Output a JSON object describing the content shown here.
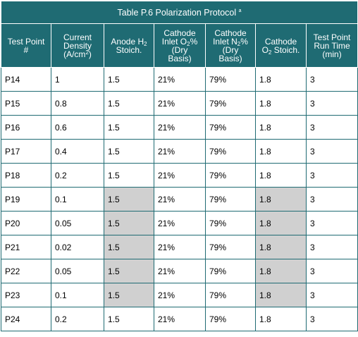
{
  "table": {
    "title": "Table P.6 Polarization Protocol",
    "title_note": "a",
    "headers": [
      {
        "lines": [
          [
            "Test Point"
          ],
          [
            "#"
          ]
        ]
      },
      {
        "lines": [
          [
            "Current"
          ],
          [
            "Density"
          ],
          [
            "(A/cm",
            {
              "sup": "2"
            },
            ")"
          ]
        ]
      },
      {
        "lines": [
          [
            "Anode H",
            {
              "sub": "2"
            }
          ],
          [
            "Stoich."
          ]
        ]
      },
      {
        "lines": [
          [
            "Cathode"
          ],
          [
            "Inlet O",
            {
              "sub": "2"
            },
            "%"
          ],
          [
            "(Dry"
          ],
          [
            "Basis)"
          ]
        ]
      },
      {
        "lines": [
          [
            "Cathode"
          ],
          [
            "Inlet N",
            {
              "sub": "2"
            },
            "%"
          ],
          [
            "(Dry"
          ],
          [
            "Basis)"
          ]
        ]
      },
      {
        "lines": [
          [
            "Cathode"
          ],
          [
            "O",
            {
              "sub": "2"
            },
            " Stoich."
          ]
        ]
      },
      {
        "lines": [
          [
            "Test Point"
          ],
          [
            "Run Time"
          ],
          [
            "(min)"
          ]
        ]
      }
    ],
    "rows": [
      {
        "cells": [
          "P14",
          "1",
          "1.5",
          "21%",
          "79%",
          "1.8",
          "3"
        ],
        "shaded": false
      },
      {
        "cells": [
          "P15",
          "0.8",
          "1.5",
          "21%",
          "79%",
          "1.8",
          "3"
        ],
        "shaded": false
      },
      {
        "cells": [
          "P16",
          "0.6",
          "1.5",
          "21%",
          "79%",
          "1.8",
          "3"
        ],
        "shaded": false
      },
      {
        "cells": [
          "P17",
          "0.4",
          "1.5",
          "21%",
          "79%",
          "1.8",
          "3"
        ],
        "shaded": false
      },
      {
        "cells": [
          "P18",
          "0.2",
          "1.5",
          "21%",
          "79%",
          "1.8",
          "3"
        ],
        "shaded": false
      },
      {
        "cells": [
          "P19",
          "0.1",
          "1.5",
          "21%",
          "79%",
          "1.8",
          "3"
        ],
        "shaded": true
      },
      {
        "cells": [
          "P20",
          "0.05",
          "1.5",
          "21%",
          "79%",
          "1.8",
          "3"
        ],
        "shaded": true
      },
      {
        "cells": [
          "P21",
          "0.02",
          "1.5",
          "21%",
          "79%",
          "1.8",
          "3"
        ],
        "shaded": true
      },
      {
        "cells": [
          "P22",
          "0.05",
          "1.5",
          "21%",
          "79%",
          "1.8",
          "3"
        ],
        "shaded": true
      },
      {
        "cells": [
          "P23",
          "0.1",
          "1.5",
          "21%",
          "79%",
          "1.8",
          "3"
        ],
        "shaded": true
      },
      {
        "cells": [
          "P24",
          "0.2",
          "1.5",
          "21%",
          "79%",
          "1.8",
          "3"
        ],
        "shaded": false
      }
    ],
    "shaded_columns": [
      2,
      5
    ],
    "colors": {
      "header_bg": "#1f6b73",
      "header_text": "#ffffff",
      "shade": "#d0d0d0",
      "border": "#1f6b73"
    }
  }
}
